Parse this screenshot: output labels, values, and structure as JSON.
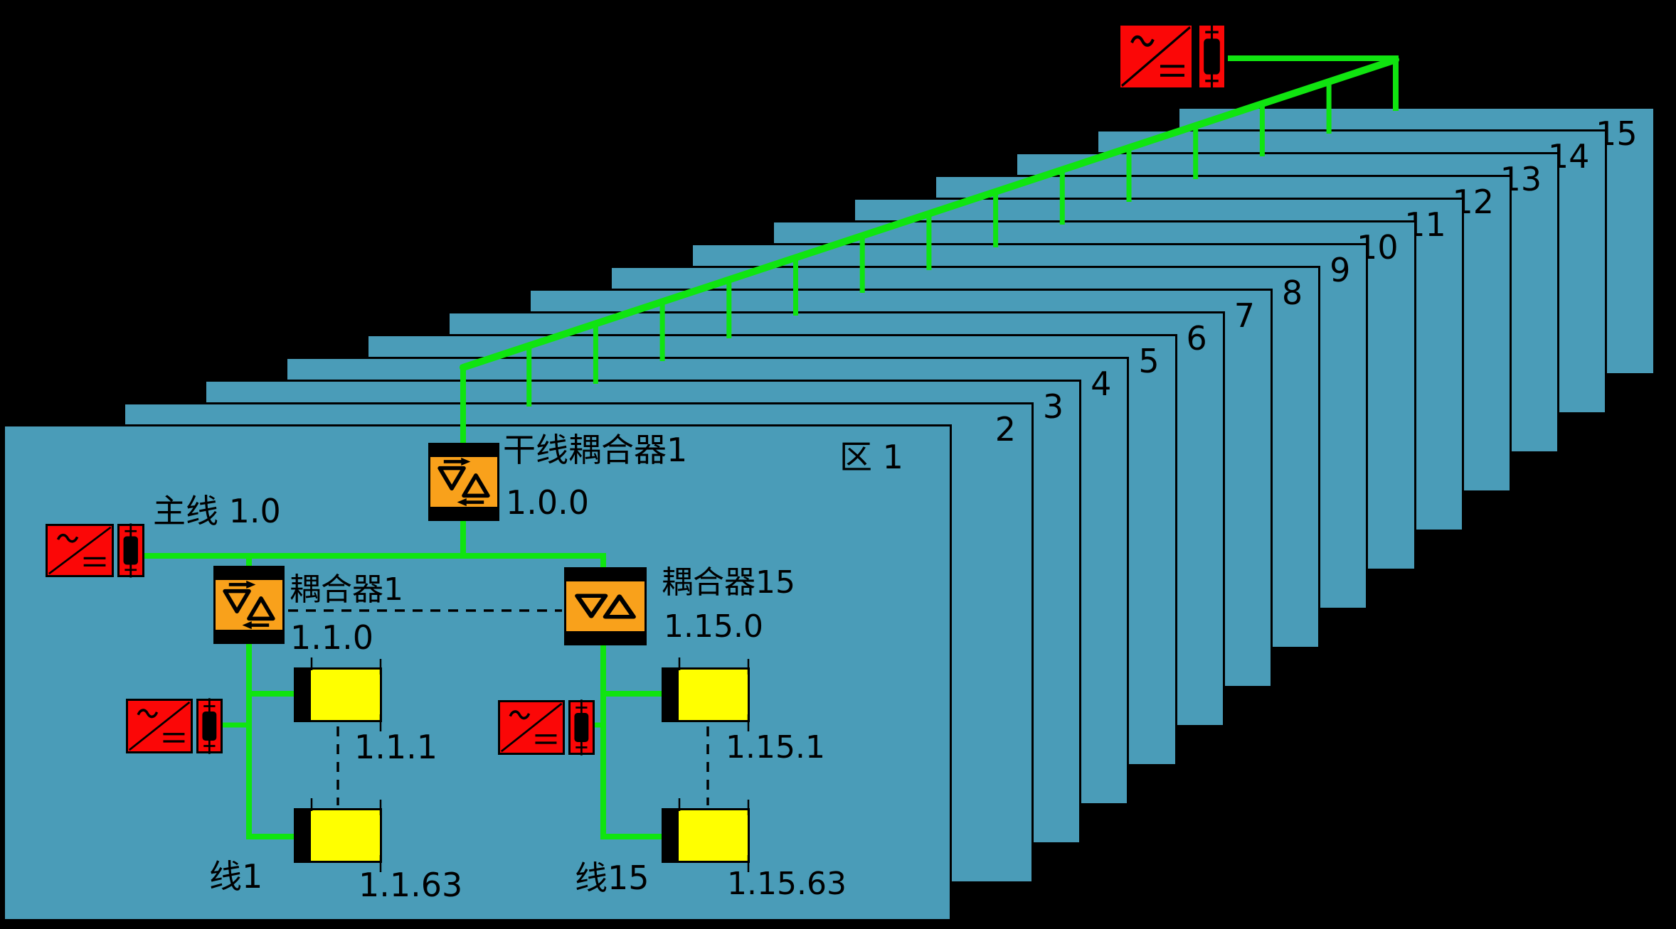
{
  "colors": {
    "background": "#000000",
    "zone_panel_blue": "#4a9cb8",
    "bus_green": "#10e410",
    "power_supply_red": "#fb0707",
    "coupler_orange": "#f9a11b",
    "device_yellow": "#ffff00",
    "line_and_text_black": "#000000"
  },
  "zones": {
    "front_zone_label": "区 1",
    "back_zone_numbers": [
      "2",
      "3",
      "4",
      "5",
      "6",
      "7",
      "8",
      "9",
      "10",
      "11",
      "12",
      "13",
      "14",
      "15"
    ]
  },
  "backbone_coupler": {
    "name": "干线耦合器1",
    "address": "1.0.0"
  },
  "main_line": {
    "label": "主线 1.0"
  },
  "line_couplers": {
    "first": {
      "name": "耦合器1",
      "address": "1.1.0"
    },
    "last": {
      "name": "耦合器15",
      "address": "1.15.0"
    }
  },
  "lines": {
    "first": {
      "label": "线1",
      "first_device_address": "1.1.1",
      "last_device_address": "1.1.63"
    },
    "last": {
      "label": "线15",
      "first_device_address": "1.15.1",
      "last_device_address": "1.15.63"
    }
  },
  "icons": [
    "power-supply-icon",
    "fuse-icon",
    "coupler-icon",
    "bus-device-icon",
    "zone-panel"
  ]
}
